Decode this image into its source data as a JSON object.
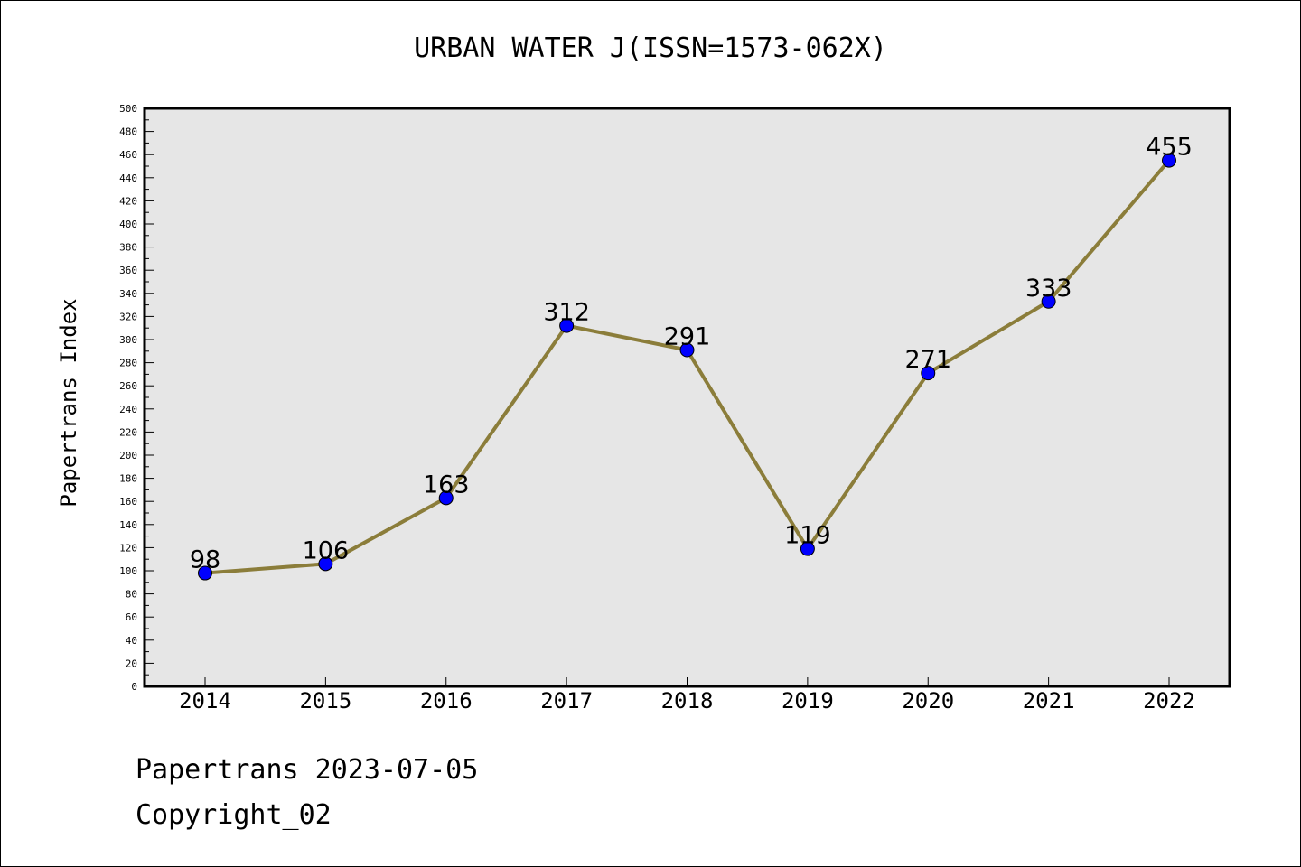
{
  "chart_data": {
    "type": "line",
    "title": "URBAN WATER J(ISSN=1573-062X)",
    "xlabel": "",
    "ylabel": "Papertrans Index",
    "categories": [
      "2014",
      "2015",
      "2016",
      "2017",
      "2018",
      "2019",
      "2020",
      "2021",
      "2022"
    ],
    "series": [
      {
        "values": [
          98,
          106,
          163,
          312,
          291,
          119,
          271,
          333,
          455
        ],
        "line_color": "#8b7d3a",
        "marker_color": "#0000ff"
      }
    ],
    "data_labels": [
      "98",
      "106",
      "163",
      "312",
      "291",
      "119",
      "271",
      "333",
      "455"
    ],
    "ylim": [
      0,
      500
    ],
    "y_ticks": [
      "0",
      "20",
      "40",
      "60",
      "80",
      "100",
      "120",
      "140",
      "160",
      "180",
      "200",
      "220",
      "240",
      "260",
      "280",
      "300",
      "320",
      "340",
      "360",
      "380",
      "400",
      "420",
      "440",
      "460",
      "480",
      "500"
    ],
    "grid": false,
    "plot_background": "#e6e6e6"
  },
  "footer": {
    "line1": "Papertrans 2023-07-05",
    "line2": "Copyright_02"
  }
}
